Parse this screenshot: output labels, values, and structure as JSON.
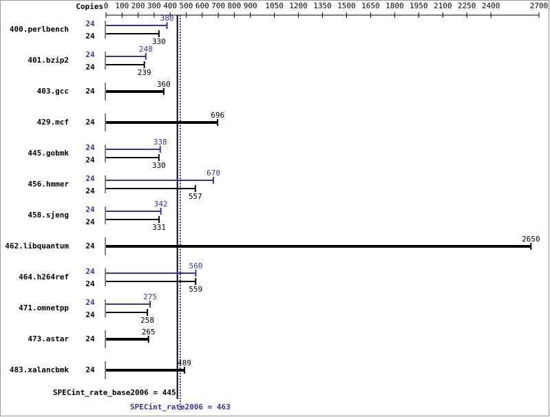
{
  "chart_data": {
    "type": "bar",
    "orientation": "horizontal",
    "copies_label": "Copies",
    "categories": [
      "400.perlbench",
      "401.bzip2",
      "403.gcc",
      "429.mcf",
      "445.gobmk",
      "456.hmmer",
      "458.sjeng",
      "462.libquantum",
      "464.h264ref",
      "471.omnetpp",
      "473.astar",
      "483.xalancbmk"
    ],
    "series": [
      {
        "color": "#000000",
        "copies": [
          24,
          24,
          24,
          24,
          24,
          24,
          24,
          24,
          24,
          24,
          24,
          24
        ],
        "values": [
          330,
          239,
          360,
          696,
          330,
          557,
          331,
          2650,
          559,
          258,
          265,
          489
        ]
      },
      {
        "color": "#333399",
        "copies": [
          24,
          24,
          null,
          null,
          24,
          24,
          24,
          null,
          24,
          24,
          null,
          null
        ],
        "values": [
          380,
          248,
          null,
          null,
          338,
          670,
          342,
          null,
          560,
          275,
          null,
          null
        ]
      }
    ],
    "xlim": [
      0,
      2700
    ],
    "xticks": [
      0,
      100,
      200,
      300,
      400,
      500,
      600,
      700,
      800,
      900,
      1050,
      1200,
      1350,
      1500,
      1650,
      1800,
      1950,
      2100,
      2250,
      2400,
      2700
    ],
    "reference_lines": [
      {
        "label": "SPECint_rate_base2006 = 445",
        "value": 445,
        "color": "#000000",
        "style": "solid"
      },
      {
        "label": "SPECint_rate2006 = 463",
        "value": 463,
        "color": "#333399",
        "style": "dotted"
      }
    ]
  }
}
